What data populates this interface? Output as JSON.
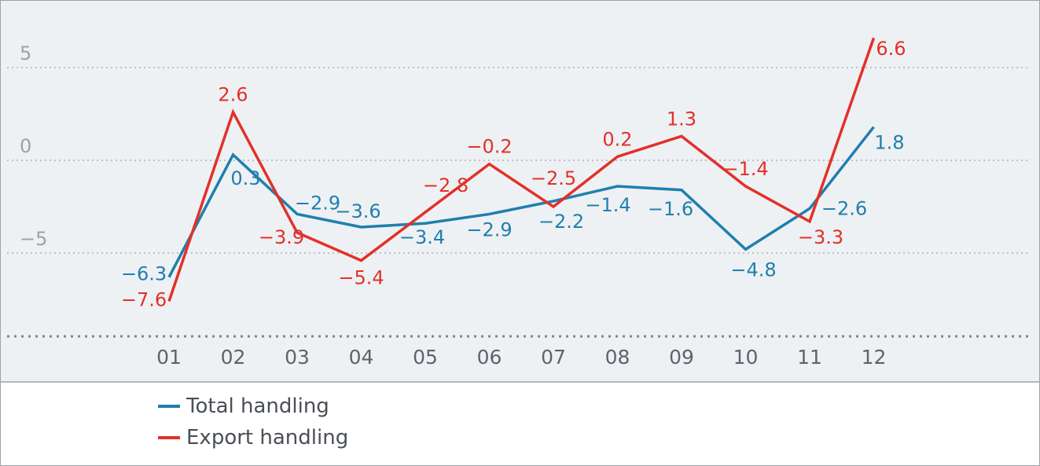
{
  "chart_data": {
    "type": "line",
    "categories": [
      "01",
      "02",
      "03",
      "04",
      "05",
      "06",
      "07",
      "08",
      "09",
      "10",
      "11",
      "12"
    ],
    "series": [
      {
        "name": "Total handling",
        "color": "#1f7fae",
        "values": [
          -6.3,
          0.3,
          -2.9,
          -3.6,
          -3.4,
          -2.9,
          -2.2,
          -1.4,
          -1.6,
          -4.8,
          -2.6,
          1.8
        ],
        "labels": [
          "−6.3",
          "0.3",
          "−2.9",
          "−3.6",
          "−3.4",
          "−2.9",
          "−2.2",
          "−1.4",
          "−1.6",
          "−4.8",
          "−2.6",
          "1.8"
        ]
      },
      {
        "name": "Export handling",
        "color": "#e2312a",
        "values": [
          -7.6,
          2.6,
          -3.9,
          -5.4,
          -2.8,
          -0.2,
          -2.5,
          0.2,
          1.3,
          -1.4,
          -3.3,
          6.6
        ],
        "labels": [
          "−7.6",
          "2.6",
          "−3.9",
          "−5.4",
          "−2.8",
          "−0.2",
          "−2.5",
          "0.2",
          "1.3",
          "−1.4",
          "−3.3",
          "6.6"
        ]
      }
    ],
    "y_ticks": [
      5,
      0,
      -5
    ],
    "y_tick_labels": [
      "5",
      "0",
      "−5"
    ],
    "ylim": [
      -9.3,
      8.5
    ],
    "grid": "horizontal dotted",
    "legend_position": "bottom-left",
    "plot_background": "#eef1f3"
  }
}
